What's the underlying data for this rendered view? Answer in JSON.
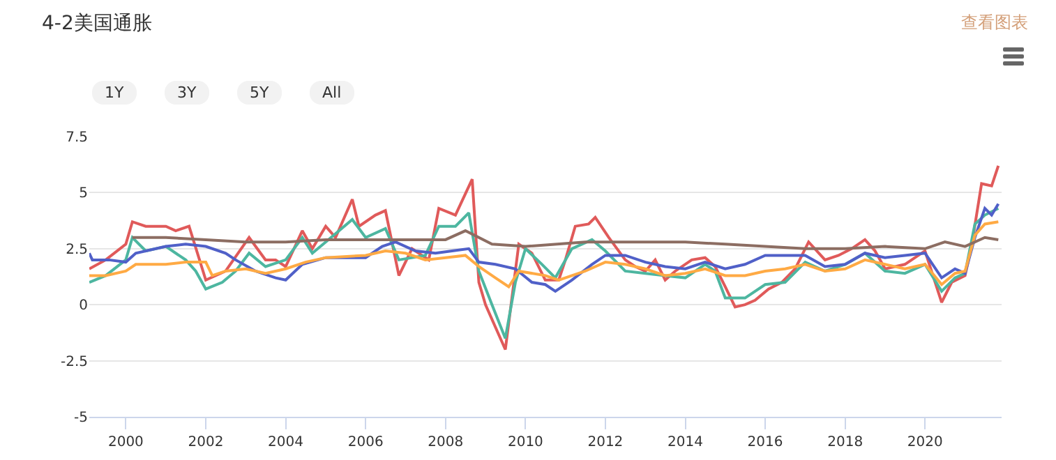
{
  "chart_data": {
    "type": "line",
    "title": "4-2美国通胀",
    "annotations": [
      "查看图表",
      "1Y",
      "3Y",
      "5Y",
      "All"
    ],
    "xlim": [
      "1999-02",
      "2021-12"
    ],
    "xticks": [
      "2000",
      "2002",
      "2004",
      "2006",
      "2008",
      "2010",
      "2012",
      "2014",
      "2016",
      "2018",
      "2020"
    ],
    "ylim": [
      -5,
      7.5
    ],
    "yticks": [
      -5,
      -2.5,
      0,
      2.5,
      5,
      7.5
    ],
    "grid": "y",
    "marker": "none",
    "line_style": "solid",
    "series": [
      {
        "color": "#e05a5a",
        "x": [
          "1999-02",
          "1999-07",
          "2000-01",
          "2000-03",
          "2000-07",
          "2001-01",
          "2001-04",
          "2001-08",
          "2002-01",
          "2002-07",
          "2003-02",
          "2003-07",
          "2003-10",
          "2004-01",
          "2004-06",
          "2004-09",
          "2005-01",
          "2005-04",
          "2005-09",
          "2005-11",
          "2006-04",
          "2006-07",
          "2006-11",
          "2007-03",
          "2007-08",
          "2007-11",
          "2008-04",
          "2008-09",
          "2008-11",
          "2009-01",
          "2009-07",
          "2009-11",
          "2010-03",
          "2010-07",
          "2010-11",
          "2011-01",
          "2011-04",
          "2011-08",
          "2011-10",
          "2012-02",
          "2012-07",
          "2012-10",
          "2013-01",
          "2013-04",
          "2013-07",
          "2013-10",
          "2014-03",
          "2014-07",
          "2014-10",
          "2015-01",
          "2015-04",
          "2015-07",
          "2015-10",
          "2016-02",
          "2016-06",
          "2016-10",
          "2017-02",
          "2017-07",
          "2017-11",
          "2018-03",
          "2018-07",
          "2018-10",
          "2019-01",
          "2019-07",
          "2019-11",
          "2020-01",
          "2020-06",
          "2020-09",
          "2021-01",
          "2021-03",
          "2021-06",
          "2021-09",
          "2021-11"
        ],
        "values": [
          1.6,
          2.0,
          2.7,
          3.7,
          3.5,
          3.5,
          3.3,
          3.5,
          1.1,
          1.5,
          3.0,
          2.0,
          2.0,
          1.7,
          3.3,
          2.5,
          3.5,
          3.0,
          4.7,
          3.5,
          4.0,
          4.2,
          1.3,
          2.5,
          2.0,
          4.3,
          4.0,
          5.6,
          1.0,
          0.0,
          -2.0,
          2.7,
          2.3,
          1.1,
          1.1,
          2.0,
          3.5,
          3.6,
          3.9,
          3.0,
          2.0,
          1.7,
          1.5,
          2.0,
          1.1,
          1.5,
          2.0,
          2.1,
          1.7,
          0.8,
          -0.1,
          0.0,
          0.2,
          0.7,
          1.0,
          1.6,
          2.8,
          2.0,
          2.2,
          2.5,
          2.9,
          2.4,
          1.6,
          1.8,
          2.2,
          2.4,
          0.1,
          1.0,
          1.3,
          2.6,
          5.4,
          5.3,
          6.2
        ]
      },
      {
        "color": "#4db6a0",
        "x": [
          "1999-02",
          "1999-07",
          "2000-01",
          "2000-03",
          "2000-07",
          "2001-01",
          "2001-07",
          "2001-10",
          "2002-01",
          "2002-06",
          "2002-10",
          "2003-02",
          "2003-07",
          "2004-01",
          "2004-06",
          "2004-09",
          "2005-01",
          "2005-09",
          "2006-01",
          "2006-07",
          "2006-11",
          "2007-07",
          "2007-11",
          "2008-04",
          "2008-08",
          "2008-11",
          "2009-03",
          "2009-07",
          "2009-10",
          "2010-01",
          "2010-06",
          "2010-10",
          "2011-03",
          "2011-09",
          "2012-01",
          "2012-07",
          "2013-01",
          "2013-07",
          "2014-01",
          "2014-07",
          "2014-10",
          "2015-01",
          "2015-07",
          "2016-01",
          "2016-07",
          "2017-01",
          "2017-07",
          "2018-01",
          "2018-07",
          "2019-01",
          "2019-07",
          "2020-01",
          "2020-06",
          "2020-10",
          "2021-01",
          "2021-04",
          "2021-07",
          "2021-11"
        ],
        "values": [
          1.0,
          1.3,
          2.0,
          3.0,
          2.4,
          2.6,
          2.0,
          1.5,
          0.7,
          1.0,
          1.5,
          2.3,
          1.7,
          2.0,
          3.0,
          2.3,
          2.8,
          3.8,
          3.0,
          3.4,
          2.0,
          2.2,
          3.5,
          3.5,
          4.1,
          1.5,
          0.0,
          -1.5,
          1.0,
          2.5,
          1.8,
          1.2,
          2.5,
          2.9,
          2.4,
          1.5,
          1.4,
          1.3,
          1.2,
          1.8,
          1.5,
          0.3,
          0.3,
          0.9,
          1.0,
          1.9,
          1.5,
          1.8,
          2.3,
          1.5,
          1.4,
          1.8,
          0.6,
          1.2,
          1.4,
          3.6,
          4.0,
          4.3
        ]
      },
      {
        "color": "#5060c8",
        "x": [
          "1999-02",
          "1999-03",
          "1999-08",
          "2000-01",
          "2000-04",
          "2001-01",
          "2001-07",
          "2002-01",
          "2002-07",
          "2002-10",
          "2003-04",
          "2003-10",
          "2004-01",
          "2004-06",
          "2005-01",
          "2005-07",
          "2006-01",
          "2006-06",
          "2006-10",
          "2007-04",
          "2007-10",
          "2008-03",
          "2008-08",
          "2008-11",
          "2009-04",
          "2009-10",
          "2010-03",
          "2010-07",
          "2010-10",
          "2011-03",
          "2011-09",
          "2012-01",
          "2012-07",
          "2013-01",
          "2013-07",
          "2014-01",
          "2014-07",
          "2015-01",
          "2015-07",
          "2016-01",
          "2016-07",
          "2017-01",
          "2017-07",
          "2018-01",
          "2018-07",
          "2019-01",
          "2019-07",
          "2020-01",
          "2020-06",
          "2020-10",
          "2021-01",
          "2021-04",
          "2021-07",
          "2021-09",
          "2021-11"
        ],
        "values": [
          2.3,
          2.0,
          2.0,
          1.9,
          2.3,
          2.6,
          2.7,
          2.6,
          2.3,
          2.0,
          1.5,
          1.2,
          1.1,
          1.8,
          2.1,
          2.1,
          2.1,
          2.6,
          2.8,
          2.4,
          2.3,
          2.4,
          2.5,
          1.9,
          1.8,
          1.6,
          1.0,
          0.9,
          0.6,
          1.1,
          1.8,
          2.2,
          2.2,
          1.9,
          1.7,
          1.6,
          1.9,
          1.6,
          1.8,
          2.2,
          2.2,
          2.2,
          1.7,
          1.8,
          2.3,
          2.1,
          2.2,
          2.3,
          1.2,
          1.6,
          1.4,
          3.0,
          4.3,
          4.0,
          4.5
        ]
      },
      {
        "color": "#ffaa44",
        "x": [
          "1999-02",
          "1999-07",
          "2000-01",
          "2000-04",
          "2001-01",
          "2001-07",
          "2002-01",
          "2002-03",
          "2002-07",
          "2003-01",
          "2003-07",
          "2004-01",
          "2004-07",
          "2005-01",
          "2006-01",
          "2006-07",
          "2007-01",
          "2007-07",
          "2008-01",
          "2008-07",
          "2008-11",
          "2009-04",
          "2009-08",
          "2009-11",
          "2010-07",
          "2010-11",
          "2011-07",
          "2012-01",
          "2012-07",
          "2013-01",
          "2013-07",
          "2014-01",
          "2014-07",
          "2015-01",
          "2015-07",
          "2016-01",
          "2016-07",
          "2017-01",
          "2017-07",
          "2018-01",
          "2018-07",
          "2019-01",
          "2019-07",
          "2020-01",
          "2020-06",
          "2020-10",
          "2021-01",
          "2021-04",
          "2021-07",
          "2021-11"
        ],
        "values": [
          1.3,
          1.3,
          1.5,
          1.8,
          1.8,
          1.9,
          1.9,
          1.3,
          1.5,
          1.6,
          1.4,
          1.6,
          1.9,
          2.1,
          2.2,
          2.4,
          2.3,
          2.0,
          2.1,
          2.2,
          1.7,
          1.2,
          0.8,
          1.5,
          1.3,
          1.1,
          1.5,
          1.9,
          1.8,
          1.6,
          1.3,
          1.4,
          1.6,
          1.3,
          1.3,
          1.5,
          1.6,
          1.8,
          1.5,
          1.6,
          2.0,
          1.8,
          1.6,
          1.8,
          0.9,
          1.4,
          1.5,
          3.1,
          3.6,
          3.7
        ]
      },
      {
        "color": "#8c6d62",
        "x": [
          "2000-03",
          "2001-01",
          "2002-01",
          "2003-01",
          "2004-01",
          "2005-01",
          "2006-01",
          "2007-01",
          "2008-01",
          "2008-07",
          "2009-03",
          "2010-01",
          "2011-07",
          "2012-01",
          "2013-01",
          "2014-01",
          "2015-01",
          "2016-01",
          "2017-01",
          "2018-01",
          "2019-01",
          "2020-01",
          "2020-07",
          "2021-01",
          "2021-07",
          "2021-11"
        ],
        "values": [
          3.0,
          3.0,
          2.9,
          2.8,
          2.8,
          2.9,
          2.9,
          2.9,
          2.9,
          3.3,
          2.7,
          2.6,
          2.8,
          2.8,
          2.8,
          2.8,
          2.7,
          2.6,
          2.5,
          2.5,
          2.6,
          2.5,
          2.8,
          2.6,
          3.0,
          2.9
        ]
      }
    ]
  }
}
